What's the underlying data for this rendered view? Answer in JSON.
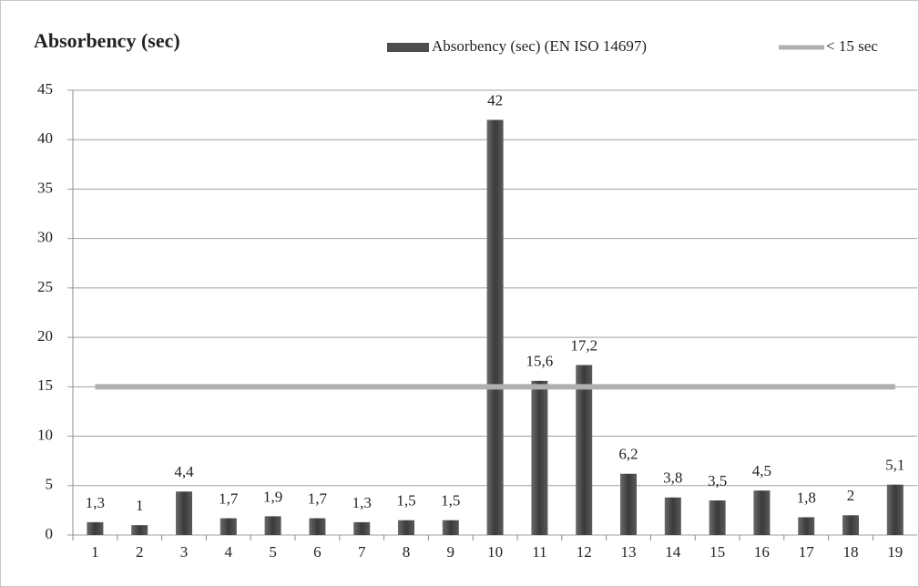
{
  "chart_data": {
    "type": "bar",
    "title": "Absorbency (sec)",
    "categories": [
      "1",
      "2",
      "3",
      "4",
      "5",
      "6",
      "7",
      "8",
      "9",
      "10",
      "11",
      "12",
      "13",
      "14",
      "15",
      "16",
      "17",
      "18",
      "19"
    ],
    "series": [
      {
        "name": "Absorbency (sec) (EN ISO 14697)",
        "type": "bar",
        "color": "#4d4d4d",
        "values": [
          1.3,
          1,
          4.4,
          1.7,
          1.9,
          1.7,
          1.3,
          1.5,
          1.5,
          42,
          15.6,
          17.2,
          6.2,
          3.8,
          3.5,
          4.5,
          1.8,
          2,
          5.1
        ],
        "value_labels": [
          "1,3",
          "1",
          "4,4",
          "1,7",
          "1,9",
          "1,7",
          "1,3",
          "1,5",
          "1,5",
          "42",
          "15,6",
          "17,2",
          "6,2",
          "3,8",
          "3,5",
          "4,5",
          "1,8",
          "2",
          "5,1"
        ]
      },
      {
        "name": "< 15 sec",
        "type": "line",
        "color": "#b0b0b0",
        "values": [
          15,
          15,
          15,
          15,
          15,
          15,
          15,
          15,
          15,
          15,
          15,
          15,
          15,
          15,
          15,
          15,
          15,
          15,
          15
        ]
      }
    ],
    "ylim": [
      0,
      45
    ],
    "yticks": [
      0,
      5,
      10,
      15,
      20,
      25,
      30,
      35,
      40,
      45
    ],
    "grid": true,
    "legend": "top"
  }
}
